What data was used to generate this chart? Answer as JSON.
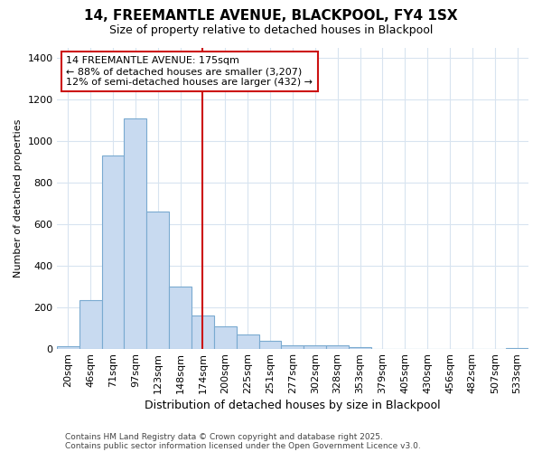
{
  "title1": "14, FREEMANTLE AVENUE, BLACKPOOL, FY4 1SX",
  "title2": "Size of property relative to detached houses in Blackpool",
  "xlabel": "Distribution of detached houses by size in Blackpool",
  "ylabel": "Number of detached properties",
  "categories": [
    "20sqm",
    "46sqm",
    "71sqm",
    "97sqm",
    "123sqm",
    "148sqm",
    "174sqm",
    "200sqm",
    "225sqm",
    "251sqm",
    "277sqm",
    "302sqm",
    "328sqm",
    "353sqm",
    "379sqm",
    "405sqm",
    "430sqm",
    "456sqm",
    "482sqm",
    "507sqm",
    "533sqm"
  ],
  "values": [
    12,
    235,
    930,
    1110,
    660,
    300,
    160,
    108,
    70,
    38,
    18,
    15,
    18,
    8,
    0,
    0,
    0,
    0,
    0,
    0,
    4
  ],
  "bar_color": "#c8daf0",
  "bar_edge_color": "#7aaad0",
  "vline_x_index": 6,
  "vline_color": "#cc1111",
  "annotation_text": "14 FREEMANTLE AVENUE: 175sqm\n← 88% of detached houses are smaller (3,207)\n12% of semi-detached houses are larger (432) →",
  "annotation_box_facecolor": "white",
  "annotation_box_edgecolor": "#cc1111",
  "ylim": [
    0,
    1450
  ],
  "yticks": [
    0,
    200,
    400,
    600,
    800,
    1000,
    1200,
    1400
  ],
  "footer1": "Contains HM Land Registry data © Crown copyright and database right 2025.",
  "footer2": "Contains public sector information licensed under the Open Government Licence v3.0.",
  "bg_color": "#ffffff",
  "plot_bg_color": "#ffffff",
  "grid_color": "#d8e4f0",
  "title1_fontsize": 11,
  "title2_fontsize": 9,
  "xlabel_fontsize": 9,
  "ylabel_fontsize": 8,
  "tick_fontsize": 8,
  "annotation_fontsize": 8,
  "footer_fontsize": 6.5
}
